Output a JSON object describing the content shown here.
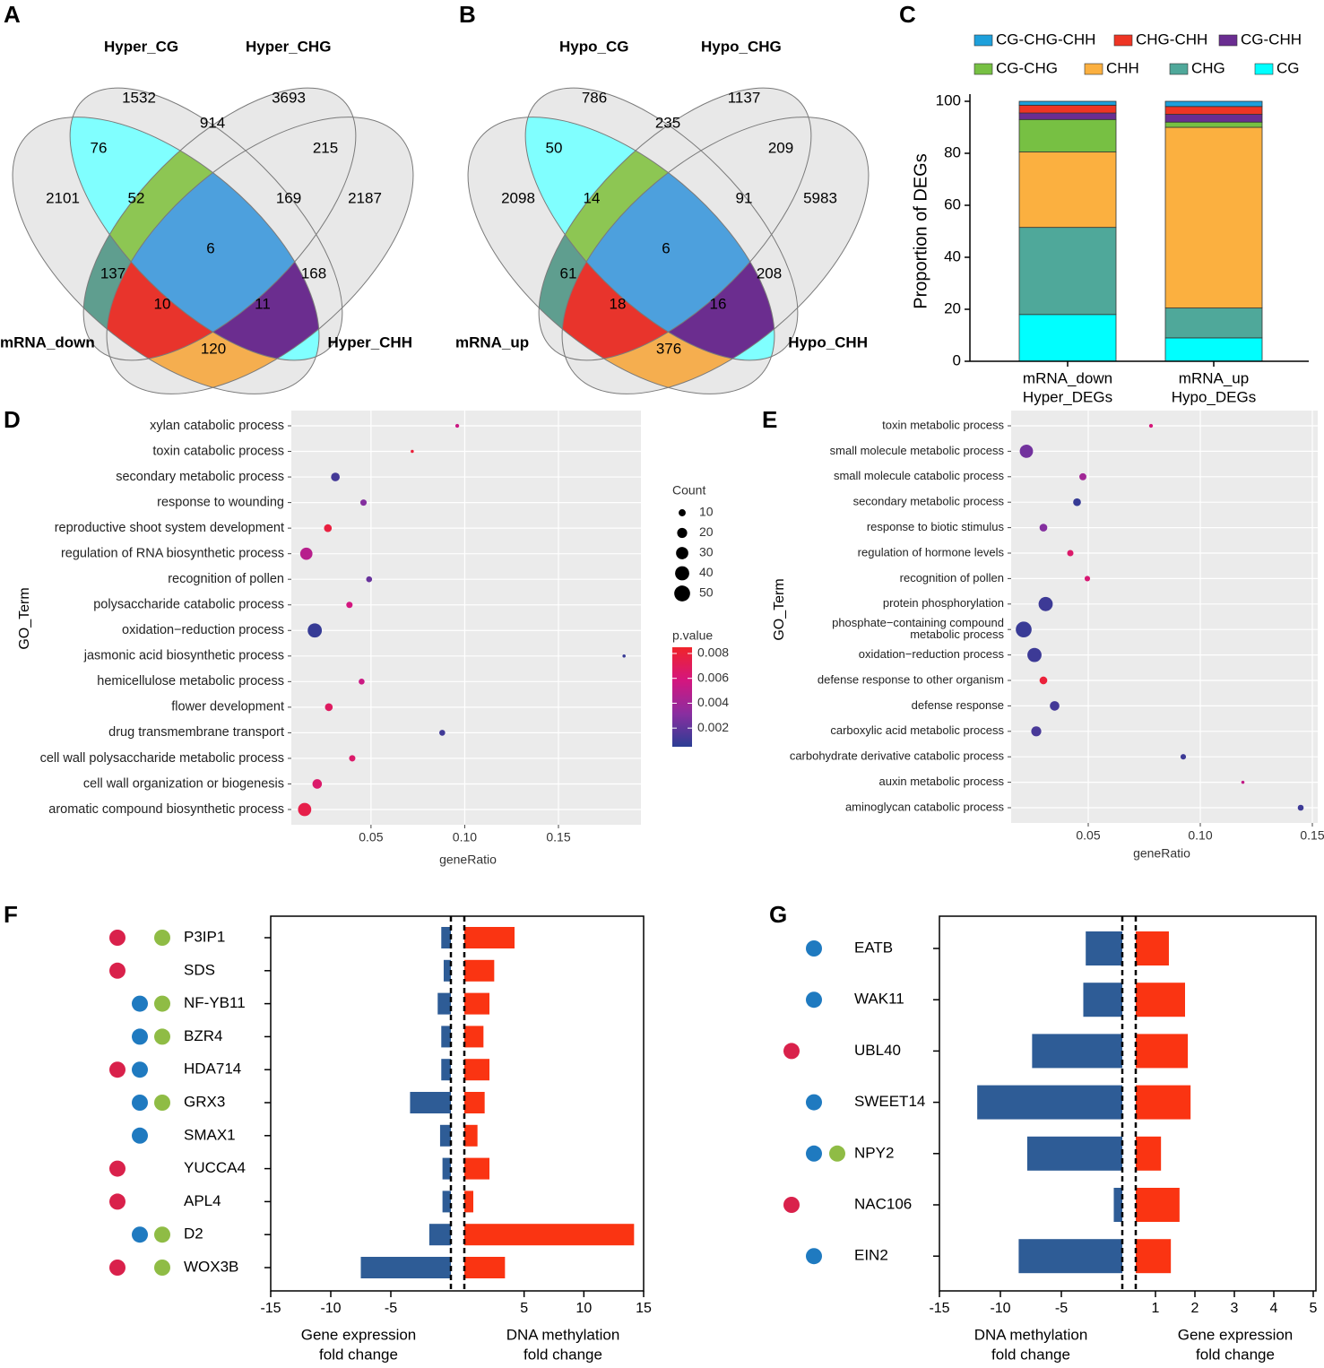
{
  "chart_data": [
    {
      "type": "venn",
      "panel": "A",
      "sets": [
        "Hyper_CG",
        "Hyper_CHG",
        "Hyper_CHH",
        "mRNA_down"
      ],
      "regions": [
        1532,
        3693,
        914,
        215,
        76,
        2101,
        52,
        169,
        2187,
        6,
        137,
        168,
        10,
        11,
        120
      ],
      "region_colors": [
        "#e8e8e8",
        "#e8e8e8",
        "#e8e8e8",
        "#e8e8e8",
        "#80ffff",
        "#e8e8e8",
        "#8dc653",
        "#e8e8e8",
        "#e8e8e8",
        "#4da0dd",
        "#5f9e8f",
        "#e8e8e8",
        "#e8342c",
        "#6b2d8f",
        "#f5ae4f"
      ]
    },
    {
      "type": "venn",
      "panel": "B",
      "sets": [
        "Hypo_CG",
        "Hypo_CHG",
        "Hypo_CHH",
        "mRNA_up"
      ],
      "regions": [
        786,
        1137,
        235,
        209,
        50,
        2098,
        14,
        91,
        5983,
        6,
        61,
        208,
        18,
        16,
        376
      ],
      "region_colors": [
        "#e8e8e8",
        "#e8e8e8",
        "#e8e8e8",
        "#e8e8e8",
        "#80ffff",
        "#e8e8e8",
        "#8dc653",
        "#e8e8e8",
        "#e8e8e8",
        "#4da0dd",
        "#5f9e8f",
        "#e8e8e8",
        "#e8342c",
        "#6b2d8f",
        "#f5ae4f"
      ]
    },
    {
      "type": "stacked_bar",
      "panel": "C",
      "ylabel": "Proportion of DEGs",
      "categories": [
        [
          "mRNA_down",
          "Hyper_DEGs"
        ],
        [
          "mRNA_up",
          "Hypo_DEGs"
        ]
      ],
      "series": [
        {
          "name": "CG-CHG-CHH",
          "color": "#1ea0db",
          "values": [
            1.5,
            2
          ]
        },
        {
          "name": "CHG-CHH",
          "color": "#ee3524",
          "values": [
            3,
            3
          ]
        },
        {
          "name": "CG-CHH",
          "color": "#6a2d91",
          "values": [
            2.5,
            3
          ]
        },
        {
          "name": "CG-CHG",
          "color": "#77c043",
          "values": [
            12.5,
            2
          ]
        },
        {
          "name": "CHH",
          "color": "#fbb040",
          "values": [
            29,
            69.5
          ]
        },
        {
          "name": "CHG",
          "color": "#4fa89a",
          "values": [
            33.5,
            11.5
          ]
        },
        {
          "name": "CG",
          "color": "#00ffff",
          "values": [
            18,
            9
          ]
        }
      ],
      "ylim": [
        0,
        100
      ],
      "yticks": [
        0,
        20,
        40,
        60,
        80,
        100
      ]
    },
    {
      "type": "dot",
      "panel": "D",
      "xlabel": "geneRatio",
      "ylabel": "GO_Term",
      "terms": [
        "xylan catabolic process",
        "toxin catabolic process",
        "secondary metabolic process",
        "response to wounding",
        "reproductive shoot system development",
        "regulation of RNA biosynthetic process",
        "recognition of pollen",
        "polysaccharide catabolic process",
        "oxidation−reduction process",
        "jasmonic acid biosynthetic process",
        "hemicellulose metabolic process",
        "flower development",
        "drug transmembrane transport",
        "cell wall polysaccharide metabolic process",
        "cell wall organization or biogenesis",
        "aromatic compound biosynthetic process"
      ],
      "x": [
        0.096,
        0.072,
        0.031,
        0.046,
        0.027,
        0.0155,
        0.049,
        0.0385,
        0.02,
        0.185,
        0.045,
        0.0275,
        0.088,
        0.04,
        0.0213,
        0.0146
      ],
      "count": [
        3,
        2,
        15,
        8,
        12,
        30,
        7,
        8,
        40,
        2,
        7,
        12,
        7,
        8,
        18,
        35
      ],
      "pvalue": [
        0.0055,
        0.008,
        0.0012,
        0.003,
        0.0078,
        0.0048,
        0.0022,
        0.0058,
        0.0008,
        0.0009,
        0.0055,
        0.0068,
        0.0011,
        0.0065,
        0.0065,
        0.0075
      ],
      "xlim": [
        0.0075,
        0.194
      ],
      "xticks": [
        0.05,
        {
          "value": 0.1,
          "label": "0.10"
        },
        0.15
      ],
      "size_legend": {
        "title": "Count",
        "values": [
          10,
          20,
          30,
          40,
          50
        ]
      },
      "color_scale": {
        "title": "p.value",
        "range": [
          0.0005,
          0.0085
        ],
        "ticks": [
          0.002,
          0.004,
          0.006,
          0.008
        ],
        "colors": [
          "#2b3d94",
          "#8a2ea0",
          "#d4167f",
          "#f0242a"
        ]
      }
    },
    {
      "type": "dot",
      "panel": "E",
      "xlabel": "geneRatio",
      "ylabel": "GO_Term",
      "terms": [
        "toxin metabolic process",
        "small molecule metabolic process",
        "small molecule catabolic process",
        "secondary metabolic process",
        "response to biotic stimulus",
        "regulation of hormone levels",
        "recognition of pollen",
        "protein phosphorylation",
        [
          "phosphate−containing compound",
          "metabolic process"
        ],
        "oxidation−reduction process",
        "defense response to other organism",
        "defense response",
        "carboxylic acid metabolic process",
        "carbohydrate derivative catabolic process",
        "auxin metabolic process",
        "aminoglycan catabolic process"
      ],
      "x": [
        0.078,
        0.0224,
        0.0476,
        0.045,
        0.03,
        0.042,
        0.0496,
        0.031,
        0.0212,
        0.026,
        0.03,
        0.035,
        0.0268,
        0.0924,
        0.119,
        0.1448
      ],
      "count": [
        3,
        35,
        10,
        12,
        12,
        8,
        6,
        40,
        50,
        40,
        12,
        18,
        20,
        6,
        2,
        7
      ],
      "pvalue": [
        0.006,
        0.0025,
        0.004,
        0.0008,
        0.003,
        0.0065,
        0.0062,
        0.001,
        0.0009,
        0.001,
        0.008,
        0.0012,
        0.0013,
        0.001,
        0.0052,
        0.001
      ],
      "xlim": [
        0.0156,
        0.1524
      ],
      "xticks": [
        0.05,
        {
          "value": 0.1,
          "label": "0.10"
        },
        0.15
      ],
      "color_scale": {
        "range": [
          0.0005,
          0.0085
        ],
        "colors": [
          "#2b3d94",
          "#8a2ea0",
          "#d4167f",
          "#f0242a"
        ]
      }
    },
    {
      "type": "diverging_bar",
      "panel": "F",
      "categories": [
        "P3IP1",
        "SDS",
        "NF-YB11",
        "BZR4",
        "HDA714",
        "GRX3",
        "SMAX1",
        "YUCCA4",
        "APL4",
        "D2",
        "WOX3B"
      ],
      "dot_colors": [
        "#d9214b",
        "#1f7ac0",
        "#8fbc45"
      ],
      "dots": [
        [
          1,
          0,
          1
        ],
        [
          1,
          0,
          0
        ],
        [
          0,
          1,
          1
        ],
        [
          0,
          1,
          1
        ],
        [
          1,
          1,
          0
        ],
        [
          0,
          1,
          1
        ],
        [
          0,
          1,
          0
        ],
        [
          1,
          0,
          0
        ],
        [
          1,
          0,
          0
        ],
        [
          0,
          1,
          1
        ],
        [
          1,
          0,
          1
        ]
      ],
      "left": {
        "title": [
          "Gene expression",
          "fold change"
        ],
        "color": "#2e5c96",
        "values": [
          -0.8,
          -0.6,
          -1.1,
          -0.8,
          -0.8,
          -3.4,
          -0.9,
          -0.7,
          -0.7,
          -1.8,
          -7.5
        ],
        "xlim": [
          -15,
          0
        ],
        "xticks": [
          -15,
          -10,
          -5
        ]
      },
      "right": {
        "title": [
          "DNA methylation",
          "fold change"
        ],
        "color": "#fa3412",
        "values": [
          4.2,
          2.5,
          2.1,
          1.6,
          2.1,
          1.7,
          1.1,
          2.1,
          0.75,
          14.2,
          3.4
        ],
        "xlim": [
          0,
          15
        ],
        "xticks": [
          5,
          10,
          15
        ]
      }
    },
    {
      "type": "diverging_bar",
      "panel": "G",
      "categories": [
        "EATB",
        "WAK11",
        "UBL40",
        "SWEET14",
        "NPY2",
        "NAC106",
        "EIN2"
      ],
      "dot_colors": [
        "#d9214b",
        "#1f7ac0",
        "#8fbc45"
      ],
      "dots": [
        [
          0,
          1,
          0
        ],
        [
          0,
          1,
          0
        ],
        [
          1,
          0,
          0
        ],
        [
          0,
          1,
          0
        ],
        [
          0,
          1,
          1
        ],
        [
          1,
          0,
          0
        ],
        [
          0,
          1,
          0
        ]
      ],
      "left": {
        "title": [
          "DNA methylation",
          "fold change"
        ],
        "color": "#2e5c96",
        "values": [
          -3.0,
          -3.2,
          -7.4,
          -11.9,
          -7.8,
          -0.7,
          -8.5
        ],
        "xlim": [
          -15,
          0
        ],
        "xticks": [
          -15,
          -10,
          -5
        ]
      },
      "right": {
        "title": [
          "Gene expression",
          "fold change"
        ],
        "color": "#fa3412",
        "values": [
          1.34,
          1.75,
          1.82,
          1.89,
          1.14,
          1.61,
          1.39
        ],
        "xlim": [
          0.5,
          5
        ],
        "xticks": [
          1,
          2,
          3,
          4,
          5
        ]
      }
    }
  ]
}
